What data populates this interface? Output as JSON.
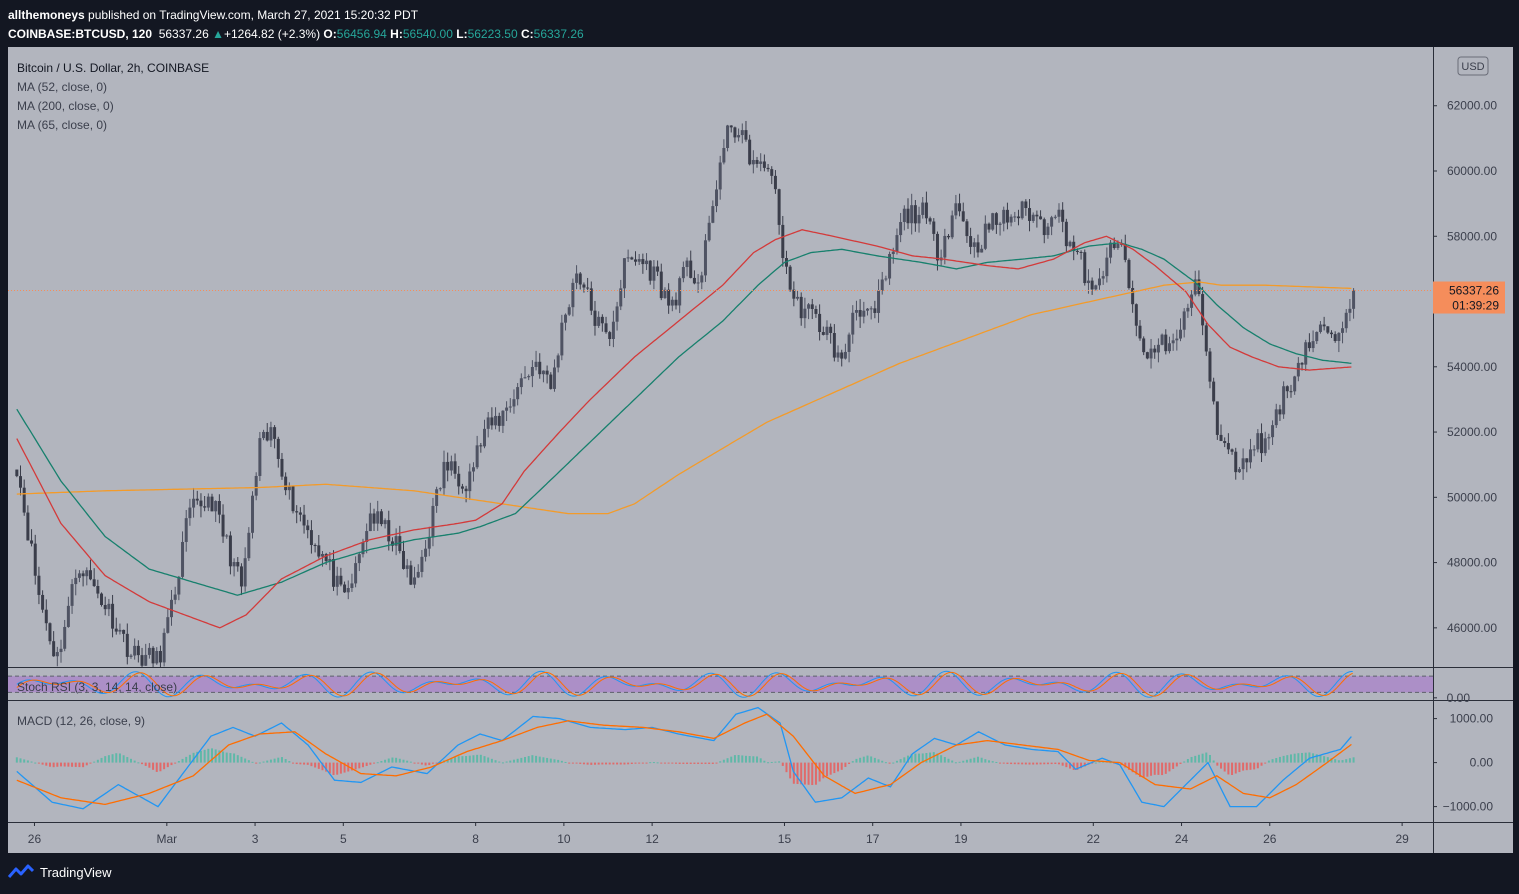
{
  "header": {
    "author": "allthemoneys",
    "published_text": "published on TradingView.com, March 27, 2021 15:20:32 PDT",
    "symbol": "COINBASE:BTCUSD, 120",
    "last": "56337.26",
    "change": "+1264.82 (+2.3%)",
    "o_label": "O:",
    "o_value": "56456.94",
    "h_label": "H:",
    "h_value": "56540.00",
    "l_label": "L:",
    "l_value": "56223.50",
    "c_label": "C:",
    "c_value": "56337.26"
  },
  "footer": {
    "brand": "TradingView"
  },
  "colors": {
    "bg": "#b2b5be",
    "frame": "#131722",
    "up": "#4f5363",
    "down": "#3a3d4a",
    "ma52": "#d33a3a",
    "ma200": "#f39b2a",
    "ma65": "#17806d",
    "price_tag": "#f58d5b",
    "rsi_band": "#a983c9",
    "rsi_k": "#2196f3",
    "rsi_d": "#ff6d00",
    "macd": "#2196f3",
    "signal": "#ff6d00",
    "hist_pos": "#5fb8a8",
    "hist_neg": "#e06a6a"
  },
  "chart_data": {
    "type": "candlestick",
    "title": "Bitcoin / U.S. Dollar, 2h, COINBASE",
    "indicators": [
      "MA (52, close, 0)",
      "MA (200, close, 0)",
      "MA (65, close, 0)"
    ],
    "currency_label": "USD",
    "ylim": [
      44800,
      63800
    ],
    "y_ticks": [
      46000,
      48000,
      50000,
      52000,
      54000,
      56000,
      58000,
      60000,
      62000
    ],
    "y_tick_labels": [
      "46000.00",
      "48000.00",
      "50000.00",
      "52000.00",
      "54000.00",
      "56000.00",
      "58000.00",
      "60000.00",
      "62000.00"
    ],
    "x_ticks": [
      {
        "day": 0.4,
        "label": "26"
      },
      {
        "day": 3.4,
        "label": "Mar"
      },
      {
        "day": 5.4,
        "label": "3"
      },
      {
        "day": 7.4,
        "label": "5"
      },
      {
        "day": 10.4,
        "label": "8"
      },
      {
        "day": 12.4,
        "label": "10"
      },
      {
        "day": 14.4,
        "label": "12"
      },
      {
        "day": 17.4,
        "label": "15"
      },
      {
        "day": 19.4,
        "label": "17"
      },
      {
        "day": 21.4,
        "label": "19"
      },
      {
        "day": 24.4,
        "label": "22"
      },
      {
        "day": 26.4,
        "label": "24"
      },
      {
        "day": 28.4,
        "label": "26"
      },
      {
        "day": 31.4,
        "label": "29"
      }
    ],
    "xlim_days": [
      -0.2,
      32.1
    ],
    "current_price": "56337.26",
    "countdown": "01:39:29",
    "price_anchors_day_value": [
      [
        0,
        51000
      ],
      [
        0.5,
        47000
      ],
      [
        0.9,
        45000
      ],
      [
        1.4,
        48000
      ],
      [
        2.1,
        46500
      ],
      [
        2.6,
        45200
      ],
      [
        3.2,
        45000
      ],
      [
        3.5,
        46500
      ],
      [
        3.9,
        49500
      ],
      [
        4.4,
        50000
      ],
      [
        5.1,
        47200
      ],
      [
        5.5,
        51500
      ],
      [
        5.8,
        52000
      ],
      [
        6.2,
        50000
      ],
      [
        6.6,
        49000
      ],
      [
        7.1,
        47800
      ],
      [
        7.4,
        46800
      ],
      [
        7.7,
        47800
      ],
      [
        8.0,
        49500
      ],
      [
        8.5,
        48800
      ],
      [
        9.0,
        47200
      ],
      [
        9.3,
        48800
      ],
      [
        9.7,
        51000
      ],
      [
        10.2,
        50500
      ],
      [
        10.6,
        52000
      ],
      [
        11.0,
        52500
      ],
      [
        11.4,
        53500
      ],
      [
        11.8,
        54200
      ],
      [
        12.1,
        53300
      ],
      [
        12.4,
        55500
      ],
      [
        12.7,
        57000
      ],
      [
        13.1,
        55500
      ],
      [
        13.4,
        54800
      ],
      [
        13.8,
        57200
      ],
      [
        14.1,
        57300
      ],
      [
        14.5,
        56800
      ],
      [
        14.8,
        55800
      ],
      [
        15.2,
        57000
      ],
      [
        15.5,
        56600
      ],
      [
        15.9,
        60000
      ],
      [
        16.2,
        61500
      ],
      [
        16.5,
        60800
      ],
      [
        16.8,
        60000
      ],
      [
        17.1,
        60200
      ],
      [
        17.3,
        58000
      ],
      [
        17.6,
        56000
      ],
      [
        18.0,
        55600
      ],
      [
        18.4,
        55000
      ],
      [
        18.7,
        54000
      ],
      [
        19.0,
        56000
      ],
      [
        19.4,
        55400
      ],
      [
        19.7,
        56800
      ],
      [
        20.1,
        58600
      ],
      [
        20.5,
        58800
      ],
      [
        20.9,
        57500
      ],
      [
        21.3,
        59000
      ],
      [
        21.7,
        57600
      ],
      [
        22.1,
        58400
      ],
      [
        22.5,
        58600
      ],
      [
        22.9,
        58800
      ],
      [
        23.3,
        58300
      ],
      [
        23.5,
        59000
      ],
      [
        23.8,
        58000
      ],
      [
        24.1,
        57300
      ],
      [
        24.4,
        56000
      ],
      [
        24.7,
        57400
      ],
      [
        25.1,
        57700
      ],
      [
        25.3,
        55500
      ],
      [
        25.6,
        54200
      ],
      [
        25.9,
        54800
      ],
      [
        26.3,
        54700
      ],
      [
        26.6,
        56200
      ],
      [
        26.8,
        56500
      ],
      [
        27.0,
        54000
      ],
      [
        27.2,
        52000
      ],
      [
        27.5,
        51200
      ],
      [
        27.8,
        50900
      ],
      [
        28.0,
        51800
      ],
      [
        28.3,
        51600
      ],
      [
        28.6,
        52800
      ],
      [
        28.9,
        53600
      ],
      [
        29.2,
        54600
      ],
      [
        29.5,
        55000
      ],
      [
        29.7,
        55200
      ],
      [
        29.9,
        54400
      ],
      [
        30.1,
        55800
      ],
      [
        30.3,
        56340
      ]
    ],
    "ma52_anchors_day_value": [
      [
        0,
        51800
      ],
      [
        1,
        49200
      ],
      [
        2,
        47600
      ],
      [
        3,
        46800
      ],
      [
        4,
        46300
      ],
      [
        4.6,
        46000
      ],
      [
        5.2,
        46400
      ],
      [
        6,
        47500
      ],
      [
        7,
        48200
      ],
      [
        8,
        48700
      ],
      [
        9,
        49000
      ],
      [
        10,
        49200
      ],
      [
        10.4,
        49300
      ],
      [
        11.0,
        49800
      ],
      [
        11.5,
        50800
      ],
      [
        12.3,
        52000
      ],
      [
        13,
        53000
      ],
      [
        14,
        54300
      ],
      [
        15,
        55400
      ],
      [
        16,
        56500
      ],
      [
        16.7,
        57500
      ],
      [
        17.2,
        57900
      ],
      [
        17.8,
        58200
      ],
      [
        18.5,
        58000
      ],
      [
        19.5,
        57700
      ],
      [
        20.3,
        57400
      ],
      [
        21,
        57300
      ],
      [
        22,
        57100
      ],
      [
        22.7,
        57000
      ],
      [
        23.5,
        57300
      ],
      [
        24.2,
        57800
      ],
      [
        24.7,
        58000
      ],
      [
        25.3,
        57600
      ],
      [
        25.8,
        57100
      ],
      [
        26.5,
        56300
      ],
      [
        27,
        55300
      ],
      [
        27.5,
        54600
      ],
      [
        28,
        54300
      ],
      [
        28.6,
        54000
      ],
      [
        29.3,
        53900
      ],
      [
        30.3,
        54000
      ]
    ],
    "ma200_anchors_day_value": [
      [
        0,
        50100
      ],
      [
        2,
        50200
      ],
      [
        5.5,
        50300
      ],
      [
        7,
        50400
      ],
      [
        9,
        50200
      ],
      [
        10.5,
        49900
      ],
      [
        11.5,
        49700
      ],
      [
        12.5,
        49500
      ],
      [
        13.4,
        49500
      ],
      [
        14,
        49800
      ],
      [
        15,
        50700
      ],
      [
        16,
        51500
      ],
      [
        17,
        52300
      ],
      [
        18,
        52900
      ],
      [
        19,
        53500
      ],
      [
        20,
        54100
      ],
      [
        21,
        54600
      ],
      [
        22,
        55100
      ],
      [
        23,
        55600
      ],
      [
        24,
        55900
      ],
      [
        25,
        56200
      ],
      [
        26,
        56500
      ],
      [
        26.8,
        56600
      ],
      [
        27.3,
        56500
      ],
      [
        28.3,
        56500
      ],
      [
        29.3,
        56450
      ],
      [
        30.3,
        56400
      ]
    ],
    "ma65_anchors_day_value": [
      [
        0,
        52700
      ],
      [
        1,
        50500
      ],
      [
        2,
        48800
      ],
      [
        3,
        47800
      ],
      [
        4,
        47400
      ],
      [
        5,
        47000
      ],
      [
        6,
        47400
      ],
      [
        7,
        48000
      ],
      [
        8,
        48400
      ],
      [
        9,
        48700
      ],
      [
        10,
        48900
      ],
      [
        10.5,
        49100
      ],
      [
        11.3,
        49500
      ],
      [
        12,
        50400
      ],
      [
        13,
        51700
      ],
      [
        14,
        53000
      ],
      [
        15,
        54300
      ],
      [
        16,
        55400
      ],
      [
        16.8,
        56500
      ],
      [
        17.4,
        57200
      ],
      [
        18,
        57500
      ],
      [
        18.7,
        57600
      ],
      [
        19.5,
        57400
      ],
      [
        20.5,
        57200
      ],
      [
        21.3,
        57000
      ],
      [
        22,
        57200
      ],
      [
        22.8,
        57300
      ],
      [
        23.5,
        57400
      ],
      [
        24.3,
        57700
      ],
      [
        25,
        57800
      ],
      [
        25.5,
        57600
      ],
      [
        26,
        57300
      ],
      [
        26.7,
        56600
      ],
      [
        27.2,
        55900
      ],
      [
        27.8,
        55200
      ],
      [
        28.4,
        54700
      ],
      [
        29,
        54400
      ],
      [
        29.6,
        54200
      ],
      [
        30.3,
        54100
      ]
    ],
    "stoch_rsi": {
      "label": "Stoch RSI (3, 3, 14, 14, close)",
      "ylim": [
        -8,
        110
      ],
      "band_upper": 80,
      "band_lower": 20,
      "tick_value": 0,
      "tick_label": "0.00"
    },
    "macd": {
      "label": "MACD (12, 26, close, 9)",
      "ylim": [
        -1350,
        1400
      ],
      "y_ticks": [
        1000,
        0,
        -1000
      ],
      "y_tick_labels": [
        "1000.00",
        "0.00",
        "−1000.00"
      ],
      "macd_anchors_day_value": [
        [
          0,
          -200
        ],
        [
          0.8,
          -900
        ],
        [
          1.5,
          -1050
        ],
        [
          2.3,
          -500
        ],
        [
          3.2,
          -1000
        ],
        [
          3.8,
          -200
        ],
        [
          4.4,
          600
        ],
        [
          4.9,
          800
        ],
        [
          5.4,
          600
        ],
        [
          6.0,
          900
        ],
        [
          6.6,
          400
        ],
        [
          7.2,
          -400
        ],
        [
          7.8,
          -450
        ],
        [
          8.5,
          -100
        ],
        [
          9.3,
          -250
        ],
        [
          10.0,
          400
        ],
        [
          10.5,
          650
        ],
        [
          11.0,
          500
        ],
        [
          11.7,
          1050
        ],
        [
          12.3,
          1000
        ],
        [
          13.0,
          800
        ],
        [
          13.8,
          750
        ],
        [
          14.4,
          800
        ],
        [
          15.0,
          650
        ],
        [
          15.8,
          500
        ],
        [
          16.3,
          1100
        ],
        [
          16.8,
          1250
        ],
        [
          17.3,
          900
        ],
        [
          17.6,
          -200
        ],
        [
          18.1,
          -900
        ],
        [
          18.7,
          -800
        ],
        [
          19.3,
          -350
        ],
        [
          19.8,
          -550
        ],
        [
          20.3,
          200
        ],
        [
          20.8,
          550
        ],
        [
          21.3,
          400
        ],
        [
          21.8,
          700
        ],
        [
          22.4,
          400
        ],
        [
          23.0,
          300
        ],
        [
          23.6,
          250
        ],
        [
          24.0,
          -150
        ],
        [
          24.6,
          100
        ],
        [
          25.0,
          -50
        ],
        [
          25.5,
          -900
        ],
        [
          26.0,
          -1000
        ],
        [
          26.6,
          -400
        ],
        [
          27.0,
          0
        ],
        [
          27.5,
          -1000
        ],
        [
          28.1,
          -1000
        ],
        [
          28.7,
          -400
        ],
        [
          29.3,
          100
        ],
        [
          30.0,
          300
        ],
        [
          30.3,
          650
        ]
      ],
      "signal_anchors_day_value": [
        [
          0,
          -400
        ],
        [
          1,
          -800
        ],
        [
          2,
          -950
        ],
        [
          3,
          -700
        ],
        [
          4,
          -300
        ],
        [
          4.8,
          400
        ],
        [
          5.5,
          650
        ],
        [
          6.3,
          700
        ],
        [
          7.0,
          200
        ],
        [
          7.8,
          -250
        ],
        [
          8.6,
          -300
        ],
        [
          9.4,
          -100
        ],
        [
          10.2,
          250
        ],
        [
          11.0,
          500
        ],
        [
          11.8,
          800
        ],
        [
          12.5,
          950
        ],
        [
          13.3,
          850
        ],
        [
          14.2,
          800
        ],
        [
          15.0,
          700
        ],
        [
          15.8,
          550
        ],
        [
          16.5,
          900
        ],
        [
          17.0,
          1100
        ],
        [
          17.6,
          600
        ],
        [
          18.3,
          -300
        ],
        [
          19.0,
          -700
        ],
        [
          19.8,
          -500
        ],
        [
          20.5,
          0
        ],
        [
          21.3,
          400
        ],
        [
          22.0,
          500
        ],
        [
          22.8,
          400
        ],
        [
          23.6,
          300
        ],
        [
          24.3,
          50
        ],
        [
          25.0,
          0
        ],
        [
          25.8,
          -500
        ],
        [
          26.6,
          -600
        ],
        [
          27.2,
          -300
        ],
        [
          27.8,
          -700
        ],
        [
          28.4,
          -800
        ],
        [
          29.0,
          -500
        ],
        [
          29.7,
          0
        ],
        [
          30.3,
          450
        ]
      ]
    }
  }
}
